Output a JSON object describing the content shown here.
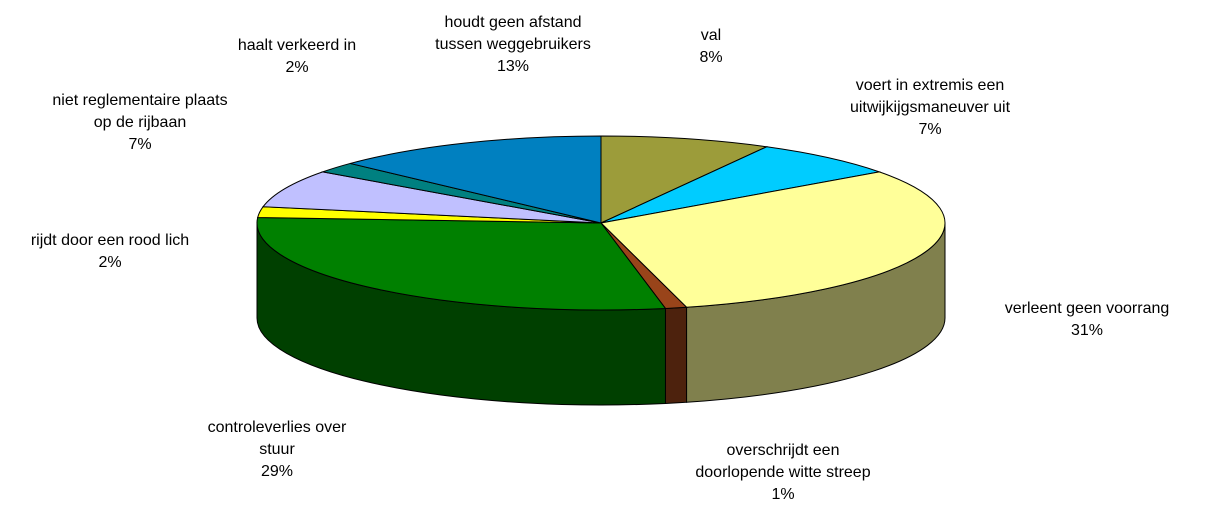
{
  "chart_data": {
    "type": "pie3d",
    "categories": [
      "val",
      "voert in extremis een\nuitwijkijgsmaneuver uit",
      "verleent geen voorrang",
      "overschrijdt een\ndoorlopende witte streep",
      "controleverlies over\nstuur",
      "rijdt door een rood lich",
      "niet reglementaire plaats\nop de rijbaan",
      "haalt verkeerd in",
      "houdt geen afstand\ntussen weggebruikers"
    ],
    "values": [
      8,
      7,
      31,
      1,
      29,
      2,
      7,
      2,
      13
    ],
    "value_labels": [
      "8%",
      "7%",
      "31%",
      "1%",
      "29%",
      "2%",
      "7%",
      "2%",
      "13%"
    ],
    "colors": [
      "#9c9c3a",
      "#00ccff",
      "#ffff99",
      "#99441a",
      "#008000",
      "#ffff00",
      "#c0c0ff",
      "#008080",
      "#0080c0"
    ]
  }
}
